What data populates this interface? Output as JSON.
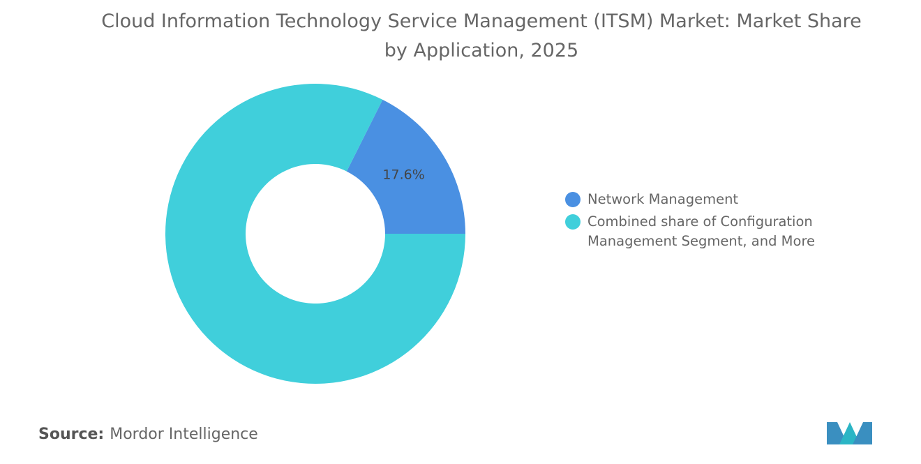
{
  "chart_data": {
    "type": "donut",
    "title": "Cloud Information Technology Service Management (ITSM) Market: Market Share by Application, 2025",
    "categories": [
      "Network Management",
      "Combined share of Configuration Management Segment, and More"
    ],
    "values": [
      17.6,
      82.4
    ],
    "value_labels": [
      "17.6%",
      null
    ],
    "colors": [
      "#4a90e2",
      "#40cfdb"
    ],
    "source_label": "Source:",
    "source": "Mordor Intelligence"
  }
}
